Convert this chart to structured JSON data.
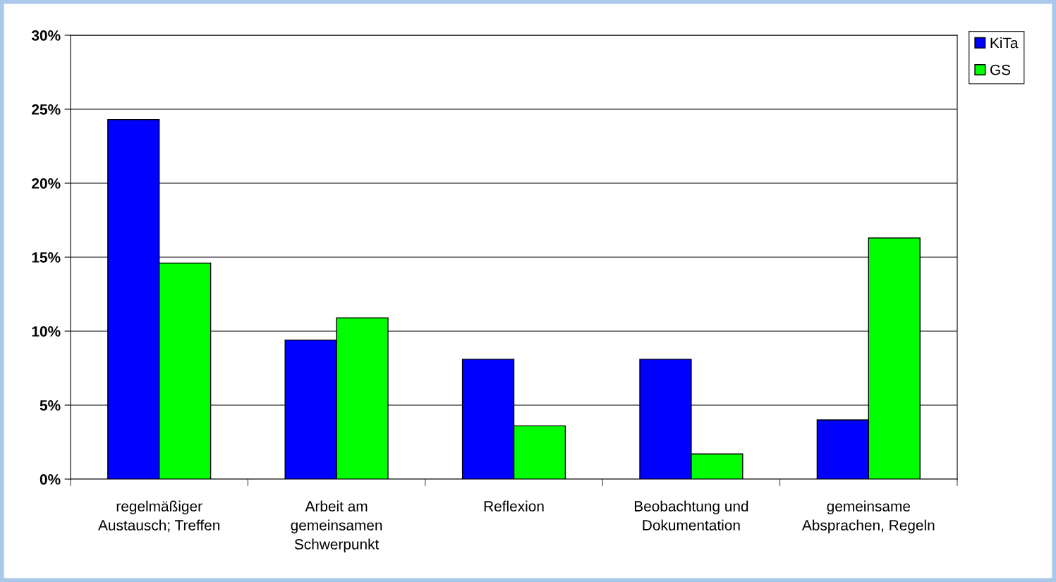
{
  "chart_data": {
    "type": "bar",
    "categories": [
      "regelmäßiger\nAustausch; Treffen",
      "Arbeit am\ngemeinsamen\nSchwerpunkt",
      "Reflexion",
      "Beobachtung und\nDokumentation",
      "gemeinsame\nAbsprachen, Regeln"
    ],
    "series": [
      {
        "name": "KiTa",
        "color": "#0000ff",
        "values": [
          24.3,
          9.4,
          8.1,
          8.1,
          4.0
        ]
      },
      {
        "name": "GS",
        "color": "#00ff00",
        "values": [
          14.6,
          10.9,
          3.6,
          1.7,
          16.3
        ]
      }
    ],
    "ylim": [
      0,
      30
    ],
    "yticks": [
      {
        "value": 0,
        "label": "0%"
      },
      {
        "value": 5,
        "label": "5%"
      },
      {
        "value": 10,
        "label": "10%"
      },
      {
        "value": 15,
        "label": "15%"
      },
      {
        "value": 20,
        "label": "20%"
      },
      {
        "value": 25,
        "label": "25%"
      },
      {
        "value": 30,
        "label": "30%"
      }
    ],
    "grid": "y",
    "legend": "top right"
  }
}
